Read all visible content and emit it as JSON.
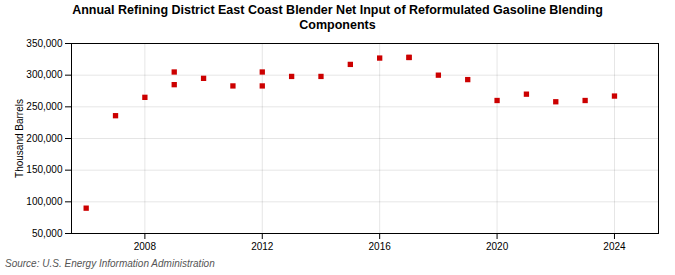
{
  "chart_data": {
    "type": "scatter",
    "title": "Annual Refining District East Coast Blender Net Input of Reformulated Gasoline Blending\nComponents",
    "ylabel": "Thousand Barrels",
    "annotations": [
      "Source: U.S. Energy Information Administration"
    ],
    "x": [
      2006,
      2007,
      2008,
      2009,
      2009,
      2010,
      2011,
      2012,
      2012,
      2013,
      2014,
      2015,
      2016,
      2017,
      2017,
      2018,
      2019,
      2020,
      2021,
      2022,
      2023,
      2024
    ],
    "values": [
      90000,
      236000,
      265000,
      285000,
      305000,
      295000,
      283000,
      283000,
      305000,
      298000,
      298000,
      317000,
      327000,
      328000,
      328000,
      300000,
      293000,
      260000,
      270000,
      258000,
      260000,
      267000
    ],
    "color": "#cc0000",
    "marker": "square",
    "grid": true,
    "xlim": [
      2005.5,
      2025.5
    ],
    "xticks": [
      2008,
      2012,
      2016,
      2020,
      2024
    ],
    "ylim": [
      50000,
      350000
    ],
    "yticks": [
      {
        "value": 50000,
        "label": "50,000"
      },
      {
        "value": 100000,
        "label": "100,000"
      },
      {
        "value": 150000,
        "label": "150,000"
      },
      {
        "value": 200000,
        "label": "200,000"
      },
      {
        "value": 250000,
        "label": "250,000"
      },
      {
        "value": 300000,
        "label": "300,000"
      },
      {
        "value": 350000,
        "label": "350,000"
      }
    ]
  }
}
